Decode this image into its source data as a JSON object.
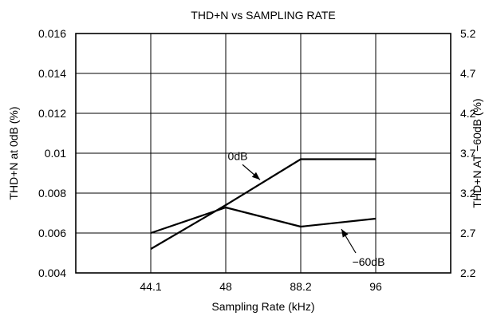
{
  "chart_data": {
    "type": "line",
    "title": "THD+N vs SAMPLING RATE",
    "xlabel": "Sampling Rate (kHz)",
    "ylabel_left": "THD+N at 0dB (%)",
    "ylabel_right": "THD+N AT −60dB (%)",
    "categories": [
      "44.1",
      "48",
      "88.2",
      "96"
    ],
    "y_left": {
      "lim": [
        0.004,
        0.016
      ],
      "ticks": [
        0.004,
        0.006,
        0.008,
        0.01,
        0.012,
        0.014,
        0.016
      ],
      "tick_labels": [
        "0.004",
        "0.006",
        "0.008",
        "0.01",
        "0.012",
        "0.014",
        "0.016"
      ]
    },
    "y_right": {
      "lim": [
        2.2,
        5.2
      ],
      "ticks": [
        2.2,
        2.7,
        3.2,
        3.7,
        4.2,
        4.7,
        5.2
      ],
      "tick_labels": [
        "2.2",
        "2.7",
        "3.2",
        "3.7",
        "4.2",
        "4.7",
        "5.2"
      ]
    },
    "grid": true,
    "series": [
      {
        "name": "0dB",
        "axis": "left",
        "values": [
          0.0052,
          0.0074,
          0.0097,
          0.0097
        ]
      },
      {
        "name": "−60dB",
        "axis": "right",
        "values": [
          2.7,
          3.02,
          2.78,
          2.88
        ]
      }
    ]
  }
}
